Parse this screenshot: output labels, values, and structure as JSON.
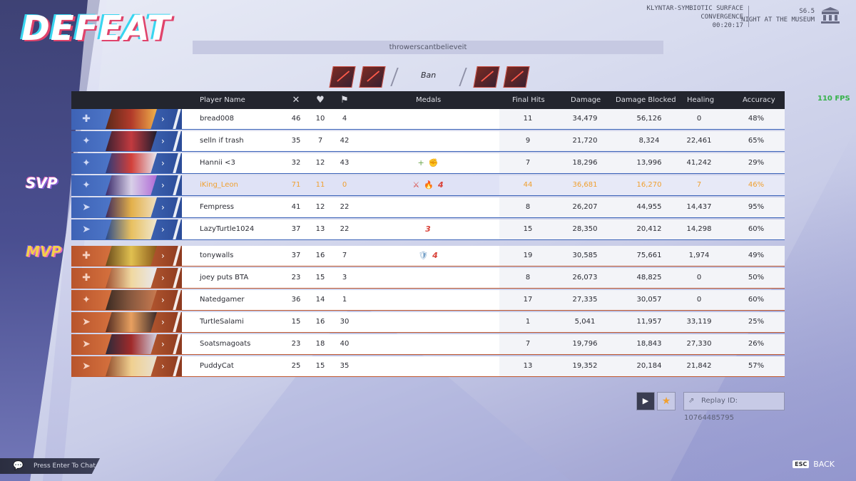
{
  "result": {
    "title": "DEFEAT"
  },
  "map": {
    "lines": [
      "KLYNTAR-SYMBIOTIC SURFACE",
      "CONVERGENCE",
      "00:20:17"
    ],
    "season": "S6.5",
    "name": "NIGHT AT THE MUSEUM"
  },
  "team_name": "throwerscantbelieveit",
  "bans": {
    "label": "Ban"
  },
  "fps": "110 FPS",
  "headers": {
    "player_name": "Player Name",
    "medals": "Medals",
    "final_hits": "Final Hits",
    "damage": "Damage",
    "damage_blocked": "Damage Blocked",
    "healing": "Healing",
    "accuracy": "Accuracy",
    "kills_icon": "crossed-swords-icon",
    "deaths_icon": "broken-heart-icon",
    "assists_icon": "assist-icon"
  },
  "tags": {
    "svp": "SVP",
    "mvp": "MVP"
  },
  "ally_players": [
    {
      "name": "bread008",
      "k": "46",
      "d": "10",
      "a": "4",
      "medals": [],
      "final_hits": "11",
      "damage": "34,479",
      "blocked": "56,126",
      "healing": "0",
      "accuracy": "48%",
      "role": "vanguard"
    },
    {
      "name": "selln if trash",
      "k": "35",
      "d": "7",
      "a": "42",
      "medals": [],
      "final_hits": "9",
      "damage": "21,720",
      "blocked": "8,324",
      "healing": "22,461",
      "accuracy": "65%",
      "role": "duelist"
    },
    {
      "name": "Hannii <3",
      "k": "32",
      "d": "12",
      "a": "43",
      "medals": [
        "+",
        "✊"
      ],
      "final_hits": "7",
      "damage": "18,296",
      "blocked": "13,996",
      "healing": "41,242",
      "accuracy": "29%",
      "role": "duelist"
    },
    {
      "name": "iKing_Leon",
      "k": "71",
      "d": "11",
      "a": "0",
      "medals": [
        "⚔",
        "🔥",
        "4"
      ],
      "final_hits": "44",
      "damage": "36,681",
      "blocked": "16,270",
      "healing": "7",
      "accuracy": "46%",
      "role": "duelist"
    },
    {
      "name": "Fempress",
      "k": "41",
      "d": "12",
      "a": "22",
      "medals": [],
      "final_hits": "8",
      "damage": "26,207",
      "blocked": "44,955",
      "healing": "14,437",
      "accuracy": "95%",
      "role": "strategist"
    },
    {
      "name": "LazyTurtle1024",
      "k": "37",
      "d": "13",
      "a": "22",
      "medals": [
        "3"
      ],
      "final_hits": "15",
      "damage": "28,350",
      "blocked": "20,412",
      "healing": "14,298",
      "accuracy": "60%",
      "role": "strategist"
    }
  ],
  "enemy_players": [
    {
      "name": "tonywalls",
      "k": "37",
      "d": "16",
      "a": "7",
      "medals": [
        "🛡",
        "4"
      ],
      "final_hits": "19",
      "damage": "30,585",
      "blocked": "75,661",
      "healing": "1,974",
      "accuracy": "49%",
      "role": "vanguard"
    },
    {
      "name": "joey puts BTA",
      "k": "23",
      "d": "15",
      "a": "3",
      "medals": [],
      "final_hits": "8",
      "damage": "26,073",
      "blocked": "48,825",
      "healing": "0",
      "accuracy": "50%",
      "role": "vanguard"
    },
    {
      "name": "Natedgamer",
      "k": "36",
      "d": "14",
      "a": "1",
      "medals": [],
      "final_hits": "17",
      "damage": "27,335",
      "blocked": "30,057",
      "healing": "0",
      "accuracy": "60%",
      "role": "duelist"
    },
    {
      "name": "TurtleSalami",
      "k": "15",
      "d": "16",
      "a": "30",
      "medals": [],
      "final_hits": "1",
      "damage": "5,041",
      "blocked": "11,957",
      "healing": "33,119",
      "accuracy": "25%",
      "role": "strategist"
    },
    {
      "name": "Soatsmagoats",
      "k": "23",
      "d": "18",
      "a": "40",
      "medals": [],
      "final_hits": "7",
      "damage": "19,796",
      "blocked": "18,843",
      "healing": "27,330",
      "accuracy": "26%",
      "role": "strategist"
    },
    {
      "name": "PuddyCat",
      "k": "25",
      "d": "15",
      "a": "35",
      "medals": [],
      "final_hits": "13",
      "damage": "19,352",
      "blocked": "20,184",
      "healing": "21,842",
      "accuracy": "57%",
      "role": "strategist"
    }
  ],
  "footer": {
    "replay_id": "Replay ID: 10764485795",
    "chat_prompt": "Press Enter To Chat",
    "esc_key": "ESC",
    "back_label": "BACK",
    "play_icon": "play-icon",
    "favorite_icon": "star-icon",
    "share_icon": "share-icon"
  },
  "colors": {
    "ally": "#3e63b6",
    "enemy": "#c0582f",
    "highlight": "#f0a030",
    "fps": "#36b24a"
  }
}
